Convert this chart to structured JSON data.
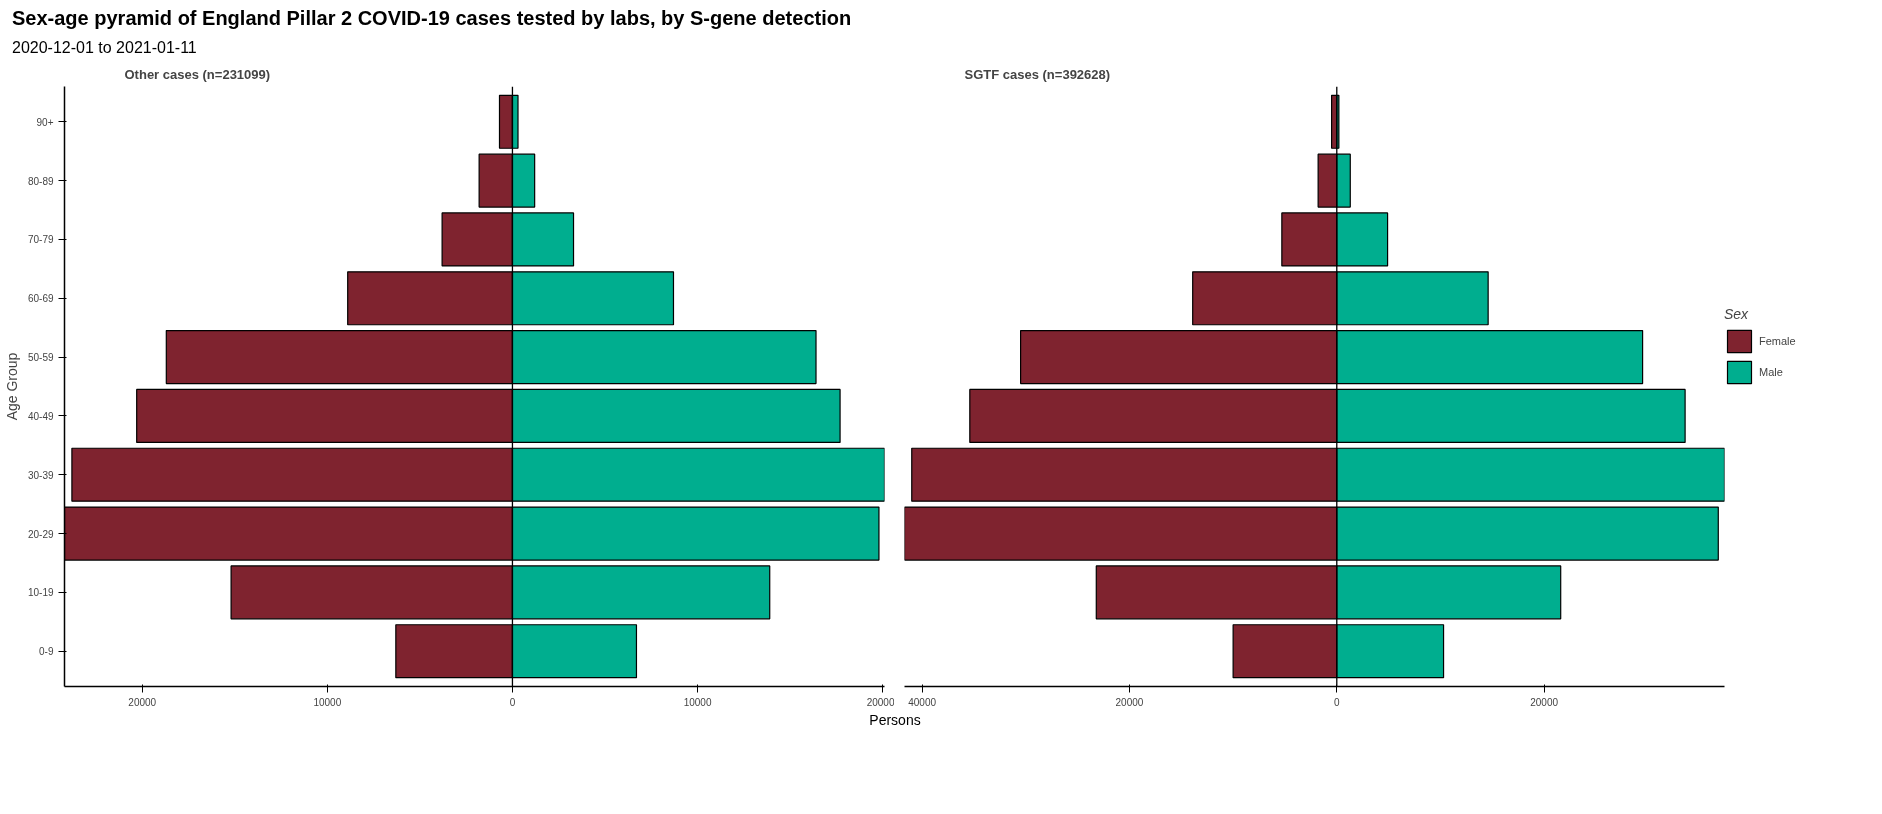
{
  "chart_data": [
    {
      "type": "bar",
      "orientation": "horizontal",
      "title": "Other cases (n=231099)",
      "annotations": [
        "Sex-age pyramid of England Pillar 2 COVID-19 cases tested by labs, by S-gene detection",
        "2020-12-01 to 2021-01-11"
      ],
      "xlabel": "Persons",
      "ylabel": "Age Group",
      "categories": [
        "90+",
        "80-89",
        "70-79",
        "60-69",
        "50-59",
        "40-49",
        "30-39",
        "20-29",
        "10-19",
        "0-9"
      ],
      "series": [
        {
          "color": "#7f232f",
          "values": [
            -700,
            -1800,
            -3800,
            -8900,
            -18700,
            -20300,
            -23800,
            -24200,
            -15200,
            -6300
          ]
        },
        {
          "color": "#00ae8f",
          "values": [
            300,
            1200,
            3300,
            8700,
            16400,
            17700,
            20100,
            19800,
            13900,
            6700
          ]
        }
      ],
      "xlim": [
        -24200,
        20100
      ],
      "xticks": [
        {
          "value": -20000,
          "label": "20000"
        },
        {
          "value": -10000,
          "label": "10000"
        },
        0,
        10000,
        20000
      ],
      "ref_lines": [
        {
          "axis": "x",
          "value": 0,
          "color": "#000000"
        }
      ],
      "stacked": true,
      "grid": false
    },
    {
      "type": "bar",
      "orientation": "horizontal",
      "title": "SGTF cases (n=392628)",
      "stacked": true,
      "legend_title": "Sex",
      "legend": "right",
      "tick_labels": "x",
      "categories": [
        null,
        null,
        null,
        null,
        null,
        null,
        null,
        null,
        null,
        null
      ],
      "series": [
        {
          "name": "Female",
          "color": "#7f232f",
          "values": [
            -500,
            -1800,
            -5300,
            -13900,
            -30500,
            -35400,
            -41000,
            -41700,
            -23200,
            -10000
          ]
        },
        {
          "name": "Male",
          "color": "#00ae8f",
          "values": [
            200,
            1300,
            4900,
            14600,
            29500,
            33600,
            37400,
            36800,
            21600,
            10300
          ]
        }
      ],
      "xlim": [
        -41700,
        37400
      ],
      "xticks": [
        {
          "value": -40000,
          "label": "40000"
        },
        {
          "value": -20000,
          "label": "20000"
        },
        0,
        20000
      ],
      "ref_lines": [
        {
          "axis": "x",
          "value": 0,
          "color": "#000000"
        }
      ],
      "grid": false
    }
  ]
}
